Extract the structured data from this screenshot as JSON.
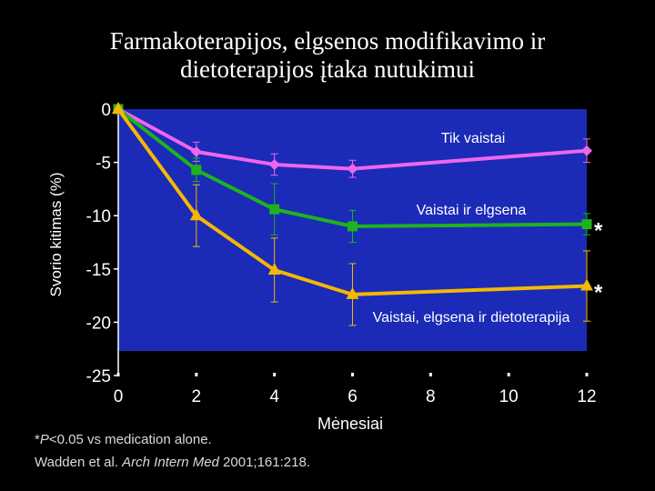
{
  "title_line1": "Farmakoterapijos, elgsenos modifikavimo ir",
  "title_line2": "dietoterapijos įtaka nutukimui",
  "footnote": {
    "mark": "*",
    "p": "P",
    "text": "<0.05 vs medication alone."
  },
  "citation": {
    "authors": "Wadden et al. ",
    "journal": "Arch Intern Med",
    "details": " 2001;161:218."
  },
  "colors": {
    "background": "#000000",
    "plot": "#1b2ab7",
    "text": "#ffffff"
  },
  "chart_data": {
    "type": "line",
    "xlabel": "Mėnesiai",
    "ylabel": "Svorio kitimas (%)",
    "xlim": [
      0,
      12
    ],
    "ylim": [
      -25,
      0
    ],
    "x_ticks": [
      0,
      2,
      4,
      6,
      8,
      10,
      12
    ],
    "y_ticks": [
      0,
      -5,
      -10,
      -15,
      -20,
      -25
    ],
    "grid": false,
    "series": [
      {
        "name": "Tik vaistai",
        "color": "#ee66ee",
        "marker": "diamond",
        "x": [
          0,
          2,
          4,
          6,
          12
        ],
        "y": [
          0,
          -4.0,
          -5.2,
          -5.6,
          -3.9
        ],
        "error": [
          0,
          0.9,
          1.0,
          0.8,
          1.1
        ],
        "significant": false
      },
      {
        "name": "Vaistai ir elgsena",
        "color": "#1db31d",
        "marker": "square",
        "x": [
          0,
          2,
          4,
          6,
          12
        ],
        "y": [
          0,
          -5.7,
          -9.4,
          -11.0,
          -10.8
        ],
        "error": [
          0,
          1.1,
          2.4,
          1.5,
          1.0
        ],
        "significant": true
      },
      {
        "name": "Vaistai, elgsena ir dietoterapija",
        "color": "#f5b800",
        "marker": "triangle",
        "x": [
          0,
          2,
          4,
          6,
          12
        ],
        "y": [
          0,
          -10.0,
          -15.1,
          -17.4,
          -16.6
        ],
        "error": [
          0,
          2.9,
          3.0,
          2.9,
          3.3
        ],
        "significant": true
      }
    ]
  }
}
